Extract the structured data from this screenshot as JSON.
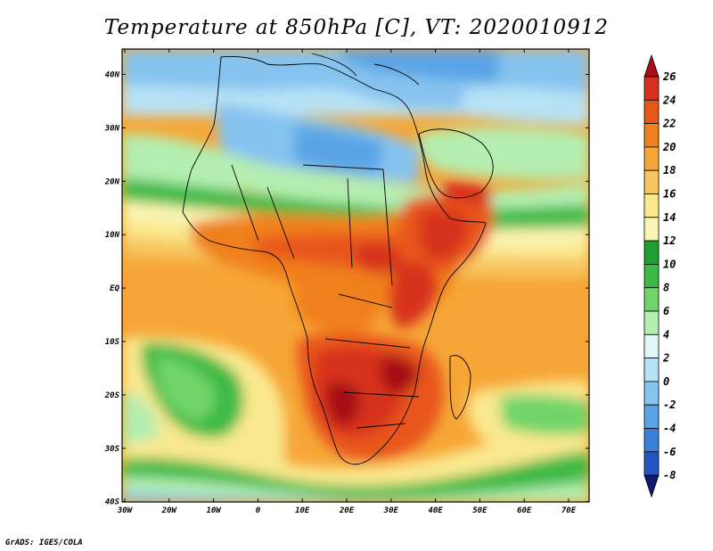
{
  "title": "Temperature at 850hPa [C], VT: 2020010912",
  "credit": "GrADS: IGES/COLA",
  "map": {
    "lon_labels": [
      "30W",
      "20W",
      "10W",
      "0",
      "10E",
      "20E",
      "30E",
      "40E",
      "50E",
      "60E",
      "70E"
    ],
    "lat_labels": [
      "40N",
      "30N",
      "20N",
      "10N",
      "EQ",
      "10S",
      "20S",
      "30S",
      "40S"
    ]
  },
  "colorbar": {
    "labels": [
      "26",
      "24",
      "22",
      "20",
      "18",
      "16",
      "14",
      "12",
      "10",
      "8",
      "6",
      "4",
      "2",
      "0",
      "-2",
      "-4",
      "-6",
      "-8"
    ],
    "colors": [
      "#a50f15",
      "#d7301f",
      "#e8571a",
      "#f0801e",
      "#f6a637",
      "#f8c660",
      "#fae88f",
      "#fbf5b4",
      "#1f9e33",
      "#3cba46",
      "#71d46a",
      "#b4eeb0",
      "#dff8f6",
      "#b7e2f5",
      "#86c3ef",
      "#5aa4e6",
      "#3a7fd8",
      "#2455c0",
      "#17309a",
      "#101a6c"
    ]
  }
}
